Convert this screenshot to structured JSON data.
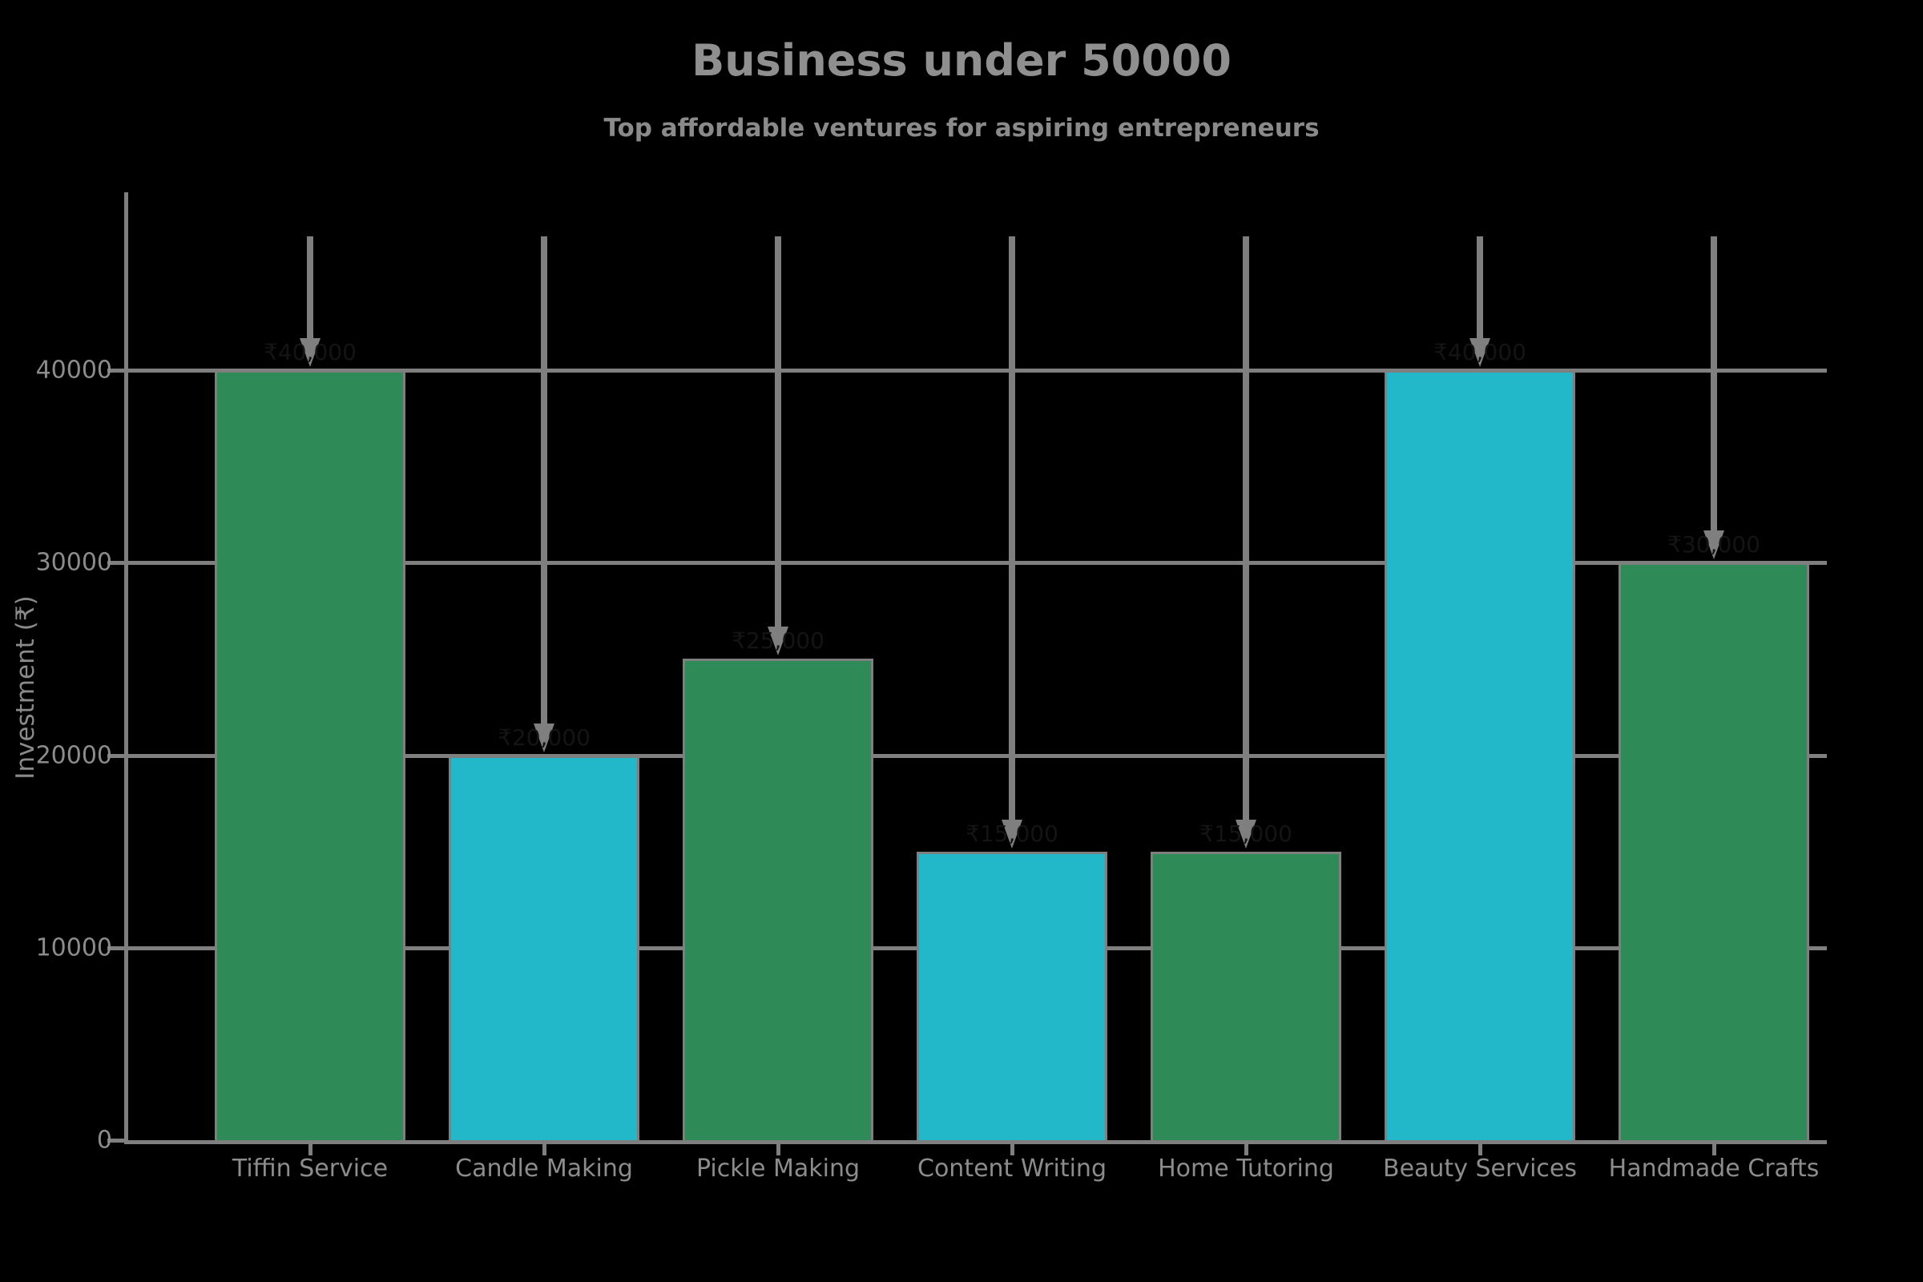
{
  "title": "Business under 50000",
  "subtitle": "Top affordable ventures for aspiring entrepreneurs",
  "y_axis_title": "Investment (₹)",
  "colors": {
    "background": "#000000",
    "grid": "#7f7f7f",
    "bar_green": "#2e8b57",
    "bar_cyan": "#22b7c9",
    "bar_edge": "#7f7f7f",
    "text": "#8c8c8c",
    "annotation_text": "#141414"
  },
  "chart_data": {
    "type": "bar",
    "title": "Business under 50000",
    "subtitle": "Top affordable ventures for aspiring entrepreneurs",
    "xlabel": "",
    "ylabel": "Investment (₹)",
    "categories": [
      "Tiffin Service",
      "Candle Making",
      "Pickle Making",
      "Content Writing",
      "Home Tutoring",
      "Beauty Services",
      "Handmade Crafts"
    ],
    "values": [
      40000,
      20000,
      25000,
      15000,
      15000,
      40000,
      30000
    ],
    "bar_colors": [
      "#2e8b57",
      "#22b7c9",
      "#2e8b57",
      "#22b7c9",
      "#2e8b57",
      "#22b7c9",
      "#2e8b57"
    ],
    "annotations": [
      "₹40,000",
      "₹20,000",
      "₹25,000",
      "₹15,000",
      "₹15,000",
      "₹40,000",
      "₹30,000"
    ],
    "yticks": [
      0,
      10000,
      20000,
      30000,
      40000
    ],
    "ytick_labels": [
      "0",
      "10000",
      "20000",
      "30000",
      "40000"
    ],
    "ylim": [
      0,
      47000
    ],
    "grid": true,
    "legend": false
  }
}
